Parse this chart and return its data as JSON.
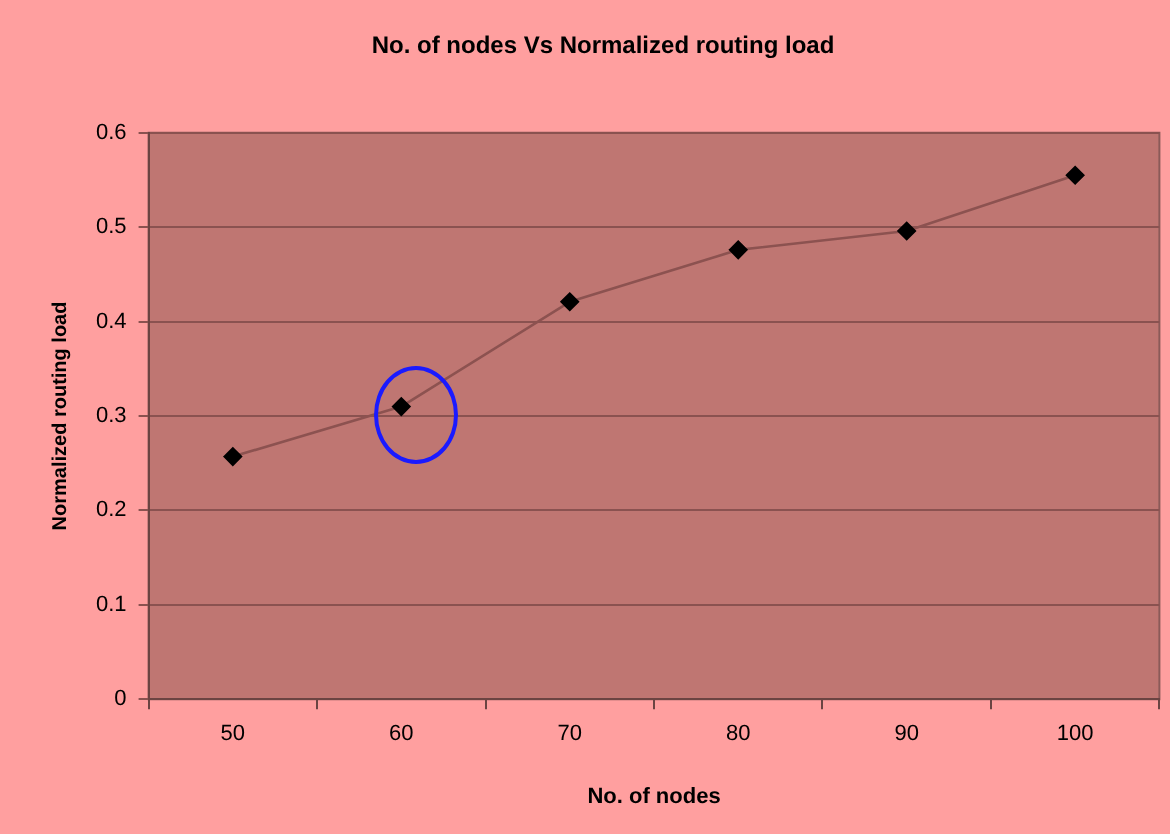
{
  "chart_data": {
    "type": "line",
    "title": "No. of nodes Vs Normalized routing load",
    "xlabel": "No. of nodes",
    "ylabel": "Normalized routing load",
    "categories": [
      "50",
      "60",
      "70",
      "80",
      "90",
      "100"
    ],
    "series": [
      {
        "color": "#000000",
        "values": [
          0.257,
          0.31,
          0.421,
          0.476,
          0.496,
          0.555
        ]
      }
    ],
    "ylim": [
      0,
      0.6
    ],
    "yticks": [
      0,
      0.1,
      0.2,
      0.3,
      0.4,
      0.5,
      0.6
    ],
    "grid": "y",
    "legend": false,
    "marker": "diamond",
    "line_style": "solid"
  }
}
